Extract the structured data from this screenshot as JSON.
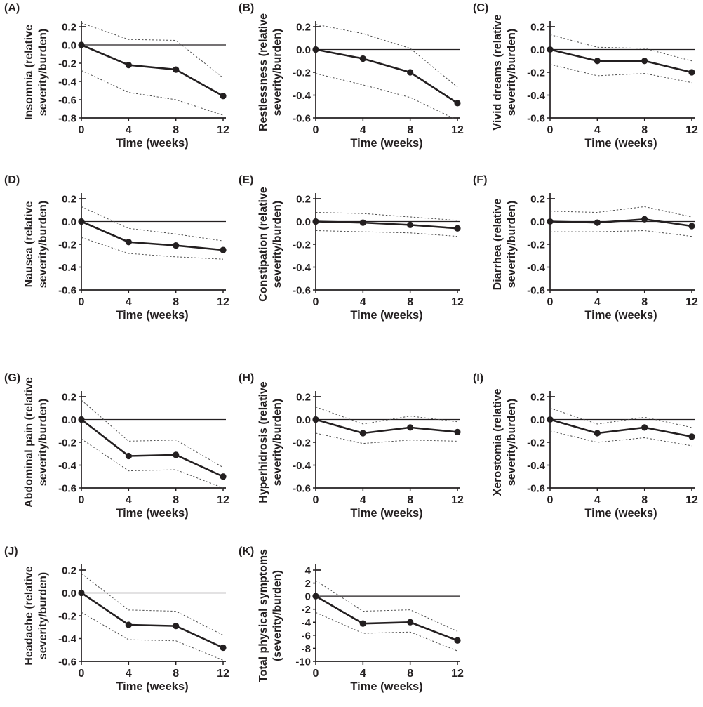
{
  "figure": {
    "description": "Eleven-panel line figure of physical symptom change over time with 95% CI dashed bands",
    "xlabel": "Time (weeks)",
    "x_tick_labels": [
      "0",
      "4",
      "8",
      "12"
    ],
    "colors": {
      "line": "#231f20",
      "ci_dashed": "#4d4d4d",
      "text": "#231f20",
      "background": "#ffffff"
    }
  },
  "chart_data": [
    {
      "type": "line",
      "panel": "(A)",
      "ylabel": "Insomnia (relative severity/burden)",
      "ylabel_lines": [
        "Insomnia (relative",
        "severity/burden)"
      ],
      "xlabel": "Time (weeks)",
      "x": [
        0,
        4,
        8,
        12
      ],
      "ylim": [
        -0.8,
        0.2
      ],
      "yticks": [
        0.2,
        0.0,
        -0.2,
        -0.4,
        -0.6,
        -0.8
      ],
      "ytick_labels": [
        "0.2",
        "0.0",
        "-0.2",
        "-0.4",
        "-0.6",
        "-0.8"
      ],
      "series": [
        {
          "name": "mean",
          "style": "solid-markers",
          "values": [
            0,
            -0.22,
            -0.27,
            -0.56
          ]
        },
        {
          "name": "upper-ci",
          "style": "dashed",
          "values": [
            0.24,
            0.06,
            0.05,
            -0.36
          ]
        },
        {
          "name": "lower-ci",
          "style": "dashed",
          "values": [
            -0.28,
            -0.52,
            -0.6,
            -0.77
          ]
        }
      ]
    },
    {
      "type": "line",
      "panel": "(B)",
      "ylabel": "Restlessness (relative severity/burden)",
      "ylabel_lines": [
        "Restlessness (relative",
        "severity/burden)"
      ],
      "xlabel": "Time (weeks)",
      "x": [
        0,
        4,
        8,
        12
      ],
      "ylim": [
        -0.6,
        0.2
      ],
      "yticks": [
        0.2,
        0.0,
        -0.2,
        -0.4,
        -0.6
      ],
      "ytick_labels": [
        "0.2",
        "0.0",
        "-0.2",
        "-0.4",
        "-0.6"
      ],
      "series": [
        {
          "name": "mean",
          "style": "solid-markers",
          "values": [
            0,
            -0.08,
            -0.2,
            -0.47
          ]
        },
        {
          "name": "upper-ci",
          "style": "dashed",
          "values": [
            0.22,
            0.14,
            0.01,
            -0.33
          ]
        },
        {
          "name": "lower-ci",
          "style": "dashed",
          "values": [
            -0.21,
            -0.31,
            -0.42,
            -0.62
          ]
        }
      ]
    },
    {
      "type": "line",
      "panel": "(C)",
      "ylabel": "Vivid dreams (relative severity/burden)",
      "ylabel_lines": [
        "Vivid dreams (relative",
        "severity/burden)"
      ],
      "xlabel": "Time (weeks)",
      "x": [
        0,
        4,
        8,
        12
      ],
      "ylim": [
        -0.6,
        0.2
      ],
      "yticks": [
        0.2,
        0.0,
        -0.2,
        -0.4,
        -0.6
      ],
      "ytick_labels": [
        "0.2",
        "0.0",
        "-0.2",
        "-0.4",
        "-0.6"
      ],
      "series": [
        {
          "name": "mean",
          "style": "solid-markers",
          "values": [
            0,
            -0.1,
            -0.1,
            -0.2
          ]
        },
        {
          "name": "upper-ci",
          "style": "dashed",
          "values": [
            0.13,
            0.02,
            0.01,
            -0.1
          ]
        },
        {
          "name": "lower-ci",
          "style": "dashed",
          "values": [
            -0.13,
            -0.23,
            -0.21,
            -0.29
          ]
        }
      ]
    },
    {
      "type": "line",
      "panel": "(D)",
      "ylabel": "Nausea (relative severity/burden)",
      "ylabel_lines": [
        "Nausea (relative",
        "severity/burden)"
      ],
      "xlabel": "Time (weeks)",
      "x": [
        0,
        4,
        8,
        12
      ],
      "ylim": [
        -0.6,
        0.2
      ],
      "yticks": [
        0.2,
        0.0,
        -0.2,
        -0.4,
        -0.6
      ],
      "ytick_labels": [
        "0.2",
        "0.0",
        "-0.2",
        "-0.4",
        "-0.6"
      ],
      "series": [
        {
          "name": "mean",
          "style": "solid-markers",
          "values": [
            0,
            -0.18,
            -0.21,
            -0.25
          ]
        },
        {
          "name": "upper-ci",
          "style": "dashed",
          "values": [
            0.13,
            -0.06,
            -0.11,
            -0.17
          ]
        },
        {
          "name": "lower-ci",
          "style": "dashed",
          "values": [
            -0.14,
            -0.28,
            -0.31,
            -0.33
          ]
        }
      ]
    },
    {
      "type": "line",
      "panel": "(E)",
      "ylabel": "Constipation (relative severity/burden)",
      "ylabel_lines": [
        "Constipation (relative",
        "severity/burden)"
      ],
      "xlabel": "Time (weeks)",
      "x": [
        0,
        4,
        8,
        12
      ],
      "ylim": [
        -0.6,
        0.2
      ],
      "yticks": [
        0.2,
        0.0,
        -0.2,
        -0.4,
        -0.6
      ],
      "ytick_labels": [
        "0.2",
        "0.0",
        "-0.2",
        "-0.4",
        "-0.6"
      ],
      "series": [
        {
          "name": "mean",
          "style": "solid-markers",
          "values": [
            0,
            -0.01,
            -0.03,
            -0.06
          ]
        },
        {
          "name": "upper-ci",
          "style": "dashed",
          "values": [
            0.08,
            0.07,
            0.04,
            0.01
          ]
        },
        {
          "name": "lower-ci",
          "style": "dashed",
          "values": [
            -0.08,
            -0.09,
            -0.1,
            -0.13
          ]
        }
      ]
    },
    {
      "type": "line",
      "panel": "(F)",
      "ylabel": "Diarrhea (relative severity/burden)",
      "ylabel_lines": [
        "Diarrhea (relative",
        "severity/burden)"
      ],
      "xlabel": "Time (weeks)",
      "x": [
        0,
        4,
        8,
        12
      ],
      "ylim": [
        -0.6,
        0.2
      ],
      "yticks": [
        0.2,
        0.0,
        -0.2,
        -0.4,
        -0.6
      ],
      "ytick_labels": [
        "0.2",
        "0.0",
        "-0.2",
        "-0.4",
        "-0.6"
      ],
      "series": [
        {
          "name": "mean",
          "style": "solid-markers",
          "values": [
            0,
            -0.01,
            0.02,
            -0.04
          ]
        },
        {
          "name": "upper-ci",
          "style": "dashed",
          "values": [
            0.09,
            0.08,
            0.13,
            0.04
          ]
        },
        {
          "name": "lower-ci",
          "style": "dashed",
          "values": [
            -0.09,
            -0.09,
            -0.08,
            -0.13
          ]
        }
      ]
    },
    {
      "type": "line",
      "panel": "(G)",
      "ylabel": "Abdominal pain (relative severity/burden)",
      "ylabel_lines": [
        "Abdominal pain (relative",
        "severity/burden)"
      ],
      "xlabel": "Time (weeks)",
      "x": [
        0,
        4,
        8,
        12
      ],
      "ylim": [
        -0.6,
        0.2
      ],
      "yticks": [
        0.2,
        0.0,
        -0.2,
        -0.4,
        -0.6
      ],
      "ytick_labels": [
        "0.2",
        "0.0",
        "-0.2",
        "-0.4",
        "-0.6"
      ],
      "series": [
        {
          "name": "mean",
          "style": "solid-markers",
          "values": [
            0,
            -0.32,
            -0.31,
            -0.5
          ]
        },
        {
          "name": "upper-ci",
          "style": "dashed",
          "values": [
            0.17,
            -0.19,
            -0.18,
            -0.42
          ]
        },
        {
          "name": "lower-ci",
          "style": "dashed",
          "values": [
            -0.17,
            -0.45,
            -0.44,
            -0.6
          ]
        }
      ]
    },
    {
      "type": "line",
      "panel": "(H)",
      "ylabel": "Hyperhidrosis (relative severity/burden)",
      "ylabel_lines": [
        "Hyperhidrosis (relative",
        "severity/burden)"
      ],
      "xlabel": "Time (weeks)",
      "x": [
        0,
        4,
        8,
        12
      ],
      "ylim": [
        -0.6,
        0.2
      ],
      "yticks": [
        0.2,
        0.0,
        -0.2,
        -0.4,
        -0.6
      ],
      "ytick_labels": [
        "0.2",
        "0.0",
        "-0.2",
        "-0.4",
        "-0.6"
      ],
      "series": [
        {
          "name": "mean",
          "style": "solid-markers",
          "values": [
            0,
            -0.12,
            -0.07,
            -0.11
          ]
        },
        {
          "name": "upper-ci",
          "style": "dashed",
          "values": [
            0.11,
            -0.04,
            0.03,
            -0.02
          ]
        },
        {
          "name": "lower-ci",
          "style": "dashed",
          "values": [
            -0.12,
            -0.21,
            -0.18,
            -0.19
          ]
        }
      ]
    },
    {
      "type": "line",
      "panel": "(I)",
      "ylabel": "Xerostomia (relative severity/burden)",
      "ylabel_lines": [
        "Xerostomia (relative",
        "severity/burden)"
      ],
      "xlabel": "Time (weeks)",
      "x": [
        0,
        4,
        8,
        12
      ],
      "ylim": [
        -0.6,
        0.2
      ],
      "yticks": [
        0.2,
        0.0,
        -0.2,
        -0.4,
        -0.6
      ],
      "ytick_labels": [
        "0.2",
        "0.0",
        "-0.2",
        "-0.4",
        "-0.6"
      ],
      "series": [
        {
          "name": "mean",
          "style": "solid-markers",
          "values": [
            0,
            -0.12,
            -0.07,
            -0.15
          ]
        },
        {
          "name": "upper-ci",
          "style": "dashed",
          "values": [
            0.1,
            -0.04,
            0.02,
            -0.07
          ]
        },
        {
          "name": "lower-ci",
          "style": "dashed",
          "values": [
            -0.1,
            -0.2,
            -0.16,
            -0.23
          ]
        }
      ]
    },
    {
      "type": "line",
      "panel": "(J)",
      "ylabel": "Headache (relative severity/burden)",
      "ylabel_lines": [
        "Headache (relative",
        "severity/burden)"
      ],
      "xlabel": "Time (weeks)",
      "x": [
        0,
        4,
        8,
        12
      ],
      "ylim": [
        -0.6,
        0.2
      ],
      "yticks": [
        0.2,
        0.0,
        -0.2,
        -0.4,
        -0.6
      ],
      "ytick_labels": [
        "0.2",
        "0.0",
        "-0.2",
        "-0.4",
        "-0.6"
      ],
      "series": [
        {
          "name": "mean",
          "style": "solid-markers",
          "values": [
            0,
            -0.28,
            -0.29,
            -0.48
          ]
        },
        {
          "name": "upper-ci",
          "style": "dashed",
          "values": [
            0.17,
            -0.15,
            -0.16,
            -0.37
          ]
        },
        {
          "name": "lower-ci",
          "style": "dashed",
          "values": [
            -0.17,
            -0.41,
            -0.42,
            -0.59
          ]
        }
      ]
    },
    {
      "type": "line",
      "panel": "(K)",
      "ylabel": "Total physical symptoms (severity/burden)",
      "ylabel_lines": [
        "Total physical symptoms",
        "(severity/burden)"
      ],
      "xlabel": "Time (weeks)",
      "x": [
        0,
        4,
        8,
        12
      ],
      "ylim": [
        -10,
        4
      ],
      "yticks": [
        4,
        2,
        0,
        -2,
        -4,
        -6,
        -8,
        -10
      ],
      "ytick_labels": [
        "4",
        "2",
        "0",
        "-2",
        "-4",
        "-6",
        "-8",
        "-10"
      ],
      "series": [
        {
          "name": "mean",
          "style": "solid-markers",
          "values": [
            0,
            -4.2,
            -4.0,
            -6.8
          ]
        },
        {
          "name": "upper-ci",
          "style": "dashed",
          "values": [
            2.4,
            -2.3,
            -2.1,
            -5.4
          ]
        },
        {
          "name": "lower-ci",
          "style": "dashed",
          "values": [
            -2.5,
            -5.7,
            -5.5,
            -8.4
          ]
        }
      ]
    }
  ]
}
